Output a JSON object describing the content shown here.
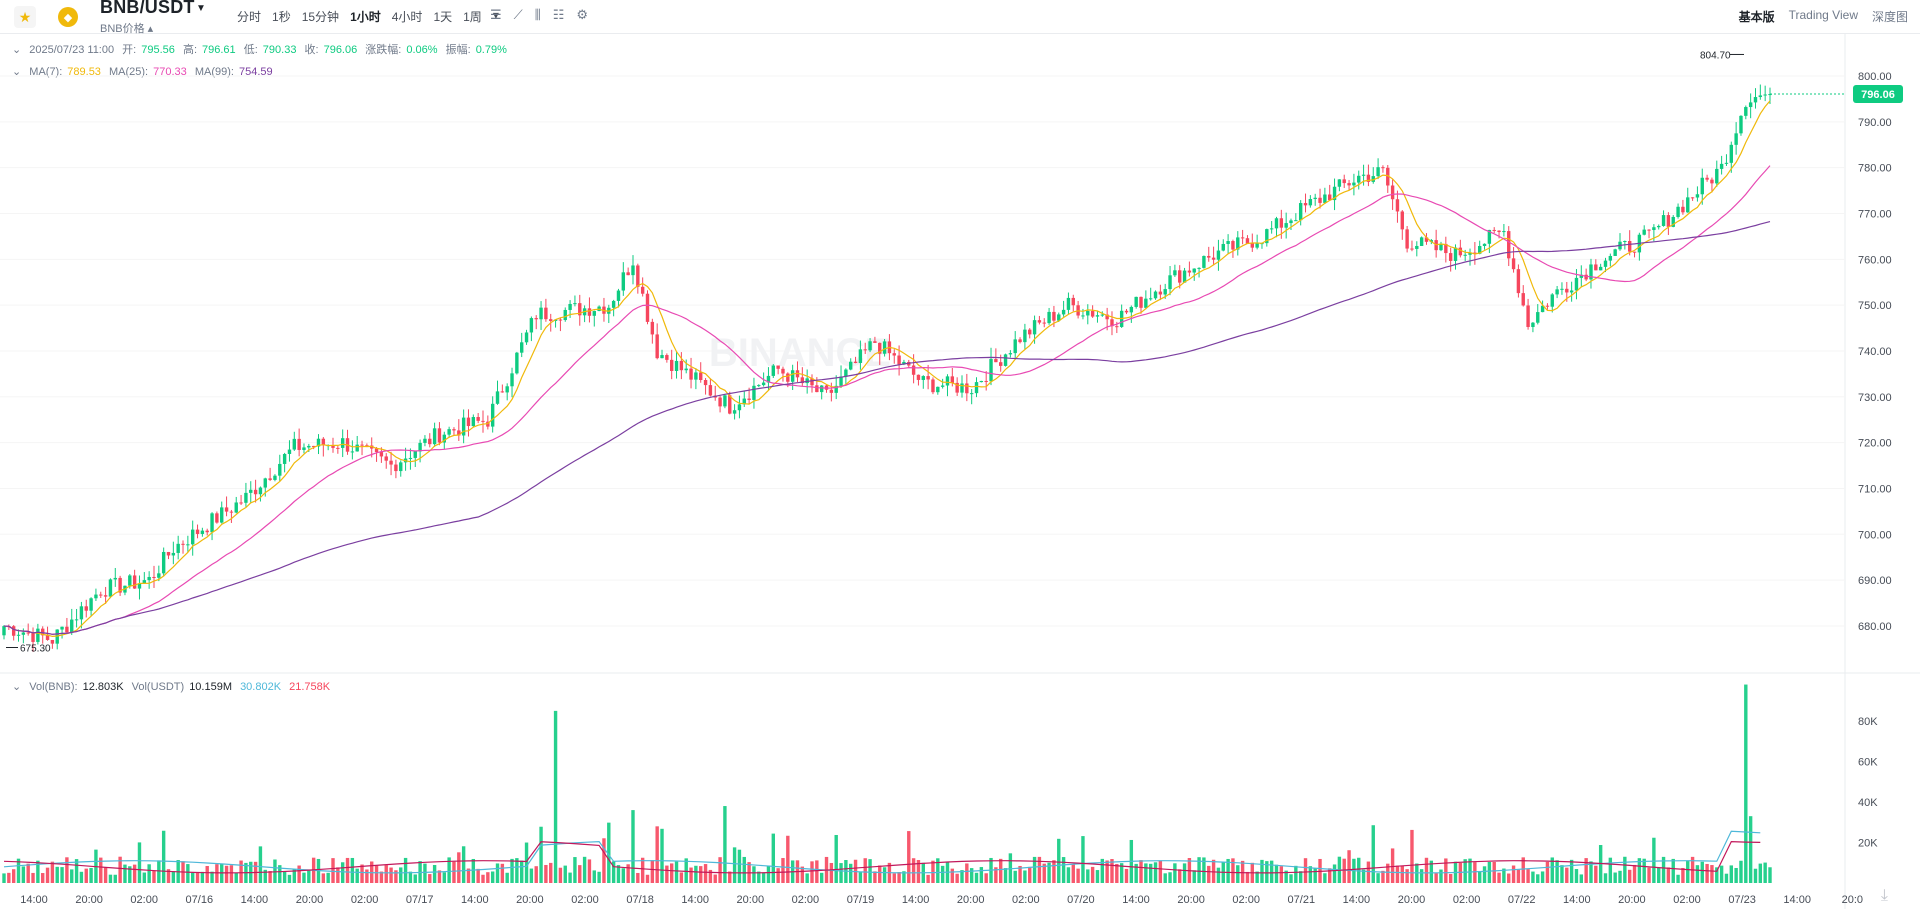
{
  "header": {
    "star_icon": "star-icon",
    "coin_icon": "bnb-coin-icon",
    "pair": "BNB/USDT",
    "price_label": "BNB价格",
    "intervals": [
      "分时",
      "1秒",
      "15分钟",
      "1小时",
      "4小时",
      "1天",
      "1周"
    ],
    "active_interval": "1小时",
    "views": [
      "基本版",
      "Trading View",
      "深度图"
    ],
    "active_view": "基本版"
  },
  "ohlc": {
    "date": "2025/07/23 11:00",
    "open_label": "开:",
    "open": "795.56",
    "high_label": "高:",
    "high": "796.61",
    "low_label": "低:",
    "low": "790.33",
    "close_label": "收:",
    "close": "796.06",
    "change_label": "涨跌幅:",
    "change": "0.06%",
    "amp_label": "振幅:",
    "amp": "0.79%"
  },
  "ma": {
    "ma7_label": "MA(7):",
    "ma7": "789.53",
    "ma25_label": "MA(25):",
    "ma25": "770.33",
    "ma99_label": "MA(99):",
    "ma99": "754.59"
  },
  "vol": {
    "bnb_label": "Vol(BNB):",
    "bnb": "12.803K",
    "usdt_label": "Vol(USDT)",
    "usdt": "10.159M",
    "ma1": "30.802K",
    "ma2": "21.758K"
  },
  "colors": {
    "up": "#0ecb81",
    "down": "#f6465d",
    "ma7": "#f0b90b",
    "ma25": "#e84ab3",
    "ma99": "#7b3fa0",
    "volma1": "#4fb8d9",
    "volma2": "#c2185b"
  },
  "chart_data": {
    "type": "candlestick",
    "y_ticks": [
      "800.00",
      "790.00",
      "780.00",
      "770.00",
      "760.00",
      "750.00",
      "740.00",
      "730.00",
      "720.00",
      "710.00",
      "700.00",
      "690.00",
      "680.00"
    ],
    "vol_ticks": [
      "80K",
      "60K",
      "40K",
      "20K"
    ],
    "x_ticks": [
      "14:00",
      "20:00",
      "02:00",
      "07/16",
      "14:00",
      "20:00",
      "02:00",
      "07/17",
      "14:00",
      "20:00",
      "02:00",
      "07/18",
      "14:00",
      "20:00",
      "02:00",
      "07/19",
      "14:00",
      "20:00",
      "02:00",
      "07/20",
      "14:00",
      "20:00",
      "02:00",
      "07/21",
      "14:00",
      "20:00",
      "02:00",
      "07/22",
      "14:00",
      "20:00",
      "02:00",
      "07/23",
      "14:00",
      "20:0"
    ],
    "current_price": "796.06",
    "max_label": "804.70",
    "min_label": "675.30",
    "watermark": "BINANCE",
    "anchors": [
      [
        0,
        680
      ],
      [
        10,
        677
      ],
      [
        20,
        688
      ],
      [
        30,
        690
      ],
      [
        35,
        697
      ],
      [
        50,
        708
      ],
      [
        60,
        719
      ],
      [
        70,
        720
      ],
      [
        80,
        715
      ],
      [
        90,
        722
      ],
      [
        100,
        725
      ],
      [
        110,
        748
      ],
      [
        125,
        750
      ],
      [
        130,
        760
      ],
      [
        135,
        740
      ],
      [
        150,
        728
      ],
      [
        160,
        736
      ],
      [
        170,
        730
      ],
      [
        180,
        742
      ],
      [
        190,
        733
      ],
      [
        200,
        732
      ],
      [
        210,
        743
      ],
      [
        220,
        750
      ],
      [
        230,
        747
      ],
      [
        240,
        755
      ],
      [
        250,
        761
      ],
      [
        260,
        765
      ],
      [
        270,
        772
      ],
      [
        280,
        778
      ],
      [
        285,
        779
      ],
      [
        290,
        764
      ],
      [
        300,
        761
      ],
      [
        310,
        766
      ],
      [
        315,
        746
      ],
      [
        320,
        752
      ],
      [
        330,
        760
      ],
      [
        340,
        765
      ],
      [
        350,
        775
      ],
      [
        355,
        780
      ],
      [
        360,
        795
      ],
      [
        365,
        796.06
      ]
    ],
    "vol_spikes": [
      [
        114,
        85
      ],
      [
        130,
        36
      ],
      [
        149,
        38
      ],
      [
        360,
        98
      ],
      [
        361,
        33
      ]
    ]
  }
}
